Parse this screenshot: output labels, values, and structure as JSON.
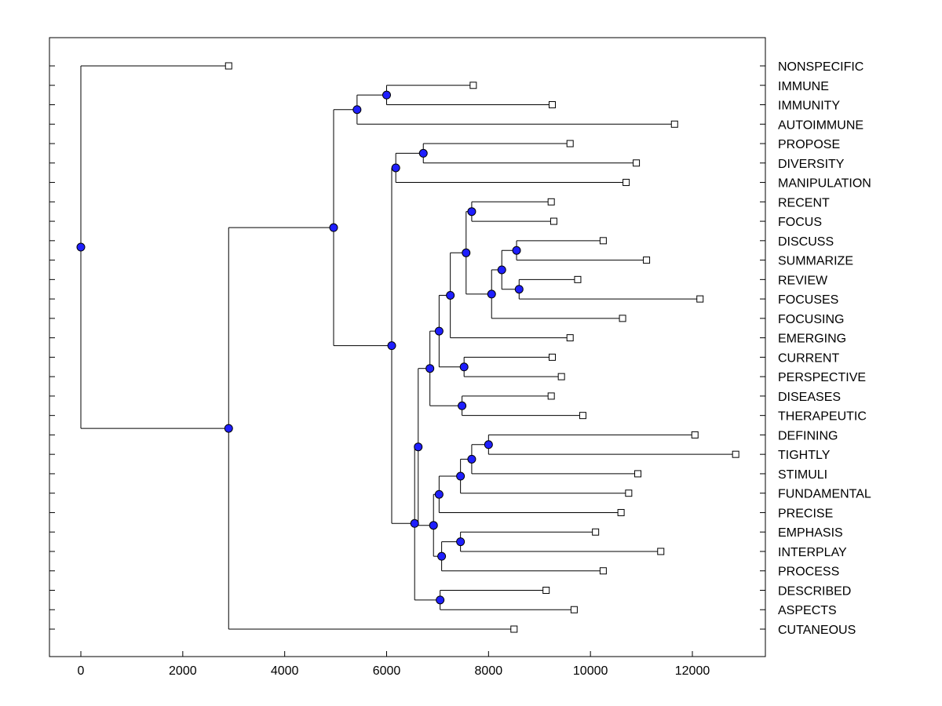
{
  "chart_data": {
    "type": "dendrogram",
    "title": "",
    "xlabel": "",
    "ylabel": "",
    "xlim": [
      -600,
      13500
    ],
    "xticks": [
      0,
      2000,
      4000,
      6000,
      8000,
      10000,
      12000
    ],
    "grid": false,
    "leaves": [
      {
        "label": "NONSPECIFIC",
        "x": 2900
      },
      {
        "label": "IMMUNE",
        "x": 7700
      },
      {
        "label": "IMMUNITY",
        "x": 9250
      },
      {
        "label": "AUTOIMMUNE",
        "x": 11650
      },
      {
        "label": "PROPOSE",
        "x": 9600
      },
      {
        "label": "DIVERSITY",
        "x": 10900
      },
      {
        "label": "MANIPULATION",
        "x": 10700
      },
      {
        "label": "RECENT",
        "x": 9230
      },
      {
        "label": "FOCUS",
        "x": 9280
      },
      {
        "label": "DISCUSS",
        "x": 10250
      },
      {
        "label": "SUMMARIZE",
        "x": 11100
      },
      {
        "label": "REVIEW",
        "x": 9750
      },
      {
        "label": "FOCUSES",
        "x": 12150
      },
      {
        "label": "FOCUSING",
        "x": 10630
      },
      {
        "label": "EMERGING",
        "x": 9600
      },
      {
        "label": "CURRENT",
        "x": 9250
      },
      {
        "label": "PERSPECTIVE",
        "x": 9430
      },
      {
        "label": "DISEASES",
        "x": 9230
      },
      {
        "label": "THERAPEUTIC",
        "x": 9850
      },
      {
        "label": "DEFINING",
        "x": 12050
      },
      {
        "label": "TIGHTLY",
        "x": 12850
      },
      {
        "label": "STIMULI",
        "x": 10930
      },
      {
        "label": "FUNDAMENTAL",
        "x": 10750
      },
      {
        "label": "PRECISE",
        "x": 10600
      },
      {
        "label": "EMPHASIS",
        "x": 10100
      },
      {
        "label": "INTERPLAY",
        "x": 11380
      },
      {
        "label": "PROCESS",
        "x": 10250
      },
      {
        "label": "DESCRIBED",
        "x": 9130
      },
      {
        "label": "ASPECTS",
        "x": 9680
      },
      {
        "label": "CUTANEOUS",
        "x": 8500
      }
    ],
    "merges": [
      {
        "id": "m1",
        "x": 6000,
        "children": [
          "L1",
          "L2"
        ]
      },
      {
        "id": "m2",
        "x": 5420,
        "children": [
          "m1",
          "L3"
        ]
      },
      {
        "id": "m3",
        "x": 6720,
        "children": [
          "L4",
          "L5"
        ]
      },
      {
        "id": "m4",
        "x": 6180,
        "children": [
          "m3",
          "L6"
        ]
      },
      {
        "id": "m5",
        "x": 7670,
        "children": [
          "L7",
          "L8"
        ]
      },
      {
        "id": "m6",
        "x": 8550,
        "children": [
          "L9",
          "L10"
        ]
      },
      {
        "id": "m7",
        "x": 8600,
        "children": [
          "L11",
          "L12"
        ]
      },
      {
        "id": "m8",
        "x": 8260,
        "children": [
          "m6",
          "m7"
        ]
      },
      {
        "id": "m9",
        "x": 8060,
        "children": [
          "m8",
          "L13"
        ]
      },
      {
        "id": "m10",
        "x": 7560,
        "children": [
          "m5",
          "m9"
        ]
      },
      {
        "id": "m11",
        "x": 7250,
        "children": [
          "m10",
          "L14"
        ]
      },
      {
        "id": "m12",
        "x": 7520,
        "children": [
          "L15",
          "L16"
        ]
      },
      {
        "id": "m13",
        "x": 7030,
        "children": [
          "m11",
          "m12"
        ]
      },
      {
        "id": "m14",
        "x": 7480,
        "children": [
          "L17",
          "L18"
        ]
      },
      {
        "id": "m15",
        "x": 6850,
        "children": [
          "m13",
          "m14"
        ]
      },
      {
        "id": "m16",
        "x": 8000,
        "children": [
          "L19",
          "L20"
        ]
      },
      {
        "id": "m17",
        "x": 7670,
        "children": [
          "m16",
          "L21"
        ]
      },
      {
        "id": "m18",
        "x": 7450,
        "children": [
          "m17",
          "L22"
        ]
      },
      {
        "id": "m19",
        "x": 7030,
        "children": [
          "m18",
          "L23"
        ]
      },
      {
        "id": "m20",
        "x": 7450,
        "children": [
          "L24",
          "L25"
        ]
      },
      {
        "id": "m21",
        "x": 7080,
        "children": [
          "m20",
          "L26"
        ]
      },
      {
        "id": "m22",
        "x": 6920,
        "children": [
          "m19",
          "m21"
        ]
      },
      {
        "id": "m23",
        "x": 6620,
        "children": [
          "m15",
          "m22"
        ]
      },
      {
        "id": "m24",
        "x": 7050,
        "children": [
          "L27",
          "L28"
        ]
      },
      {
        "id": "m25",
        "x": 6550,
        "children": [
          "m23",
          "m24"
        ]
      },
      {
        "id": "m26",
        "x": 6100,
        "children": [
          "m4",
          "m25"
        ]
      },
      {
        "id": "m27",
        "x": 4960,
        "children": [
          "m2",
          "m26"
        ]
      },
      {
        "id": "m28",
        "x": 2900,
        "children": [
          "m27",
          "L29"
        ]
      },
      {
        "id": "m29",
        "x": 0,
        "children": [
          "L0",
          "m28"
        ]
      }
    ]
  }
}
